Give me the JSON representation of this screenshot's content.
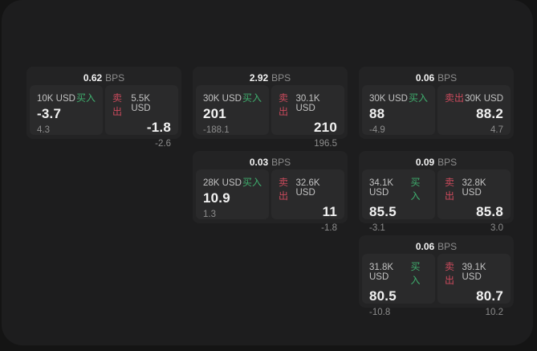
{
  "colors": {
    "bg_outer": "#141414",
    "bg_page": "#1d1d1e",
    "card_bg": "#232324",
    "panel_bg": "#2a2a2b",
    "buy_green": "#3fae6e",
    "sell_red": "#cb4a5c",
    "value_white": "#f2f2f2",
    "label_gray": "#c3c3c3",
    "muted_gray": "#8d8d8d"
  },
  "labels": {
    "bps_suffix": "BPS",
    "buy": "买入",
    "sell": "卖出"
  },
  "cards": [
    {
      "bps": "0.62",
      "grid": {
        "row": 1,
        "col": 1
      },
      "buy": {
        "amount": "10K USD",
        "value": "-3.7",
        "delta": "4.3"
      },
      "sell": {
        "amount": "5.5K USD",
        "value": "-1.8",
        "delta": "-2.6"
      }
    },
    {
      "bps": "2.92",
      "grid": {
        "row": 1,
        "col": 2
      },
      "buy": {
        "amount": "30K USD",
        "value": "201",
        "delta": "-188.1"
      },
      "sell": {
        "amount": "30.1K USD",
        "value": "210",
        "delta": "196.5"
      }
    },
    {
      "bps": "0.06",
      "grid": {
        "row": 1,
        "col": 3
      },
      "buy": {
        "amount": "30K USD",
        "value": "88",
        "delta": "-4.9"
      },
      "sell": {
        "amount": "30K USD",
        "value": "88.2",
        "delta": "4.7"
      }
    },
    {
      "bps": "0.03",
      "grid": {
        "row": 2,
        "col": 2
      },
      "buy": {
        "amount": "28K USD",
        "value": "10.9",
        "delta": "1.3"
      },
      "sell": {
        "amount": "32.6K USD",
        "value": "11",
        "delta": "-1.8"
      }
    },
    {
      "bps": "0.09",
      "grid": {
        "row": 2,
        "col": 3
      },
      "buy": {
        "amount": "34.1K USD",
        "value": "85.5",
        "delta": "-3.1"
      },
      "sell": {
        "amount": "32.8K USD",
        "value": "85.8",
        "delta": "3.0"
      }
    },
    {
      "bps": "0.06",
      "grid": {
        "row": 3,
        "col": 3
      },
      "buy": {
        "amount": "31.8K USD",
        "value": "80.5",
        "delta": "-10.8"
      },
      "sell": {
        "amount": "39.1K USD",
        "value": "80.7",
        "delta": "10.2"
      }
    }
  ]
}
